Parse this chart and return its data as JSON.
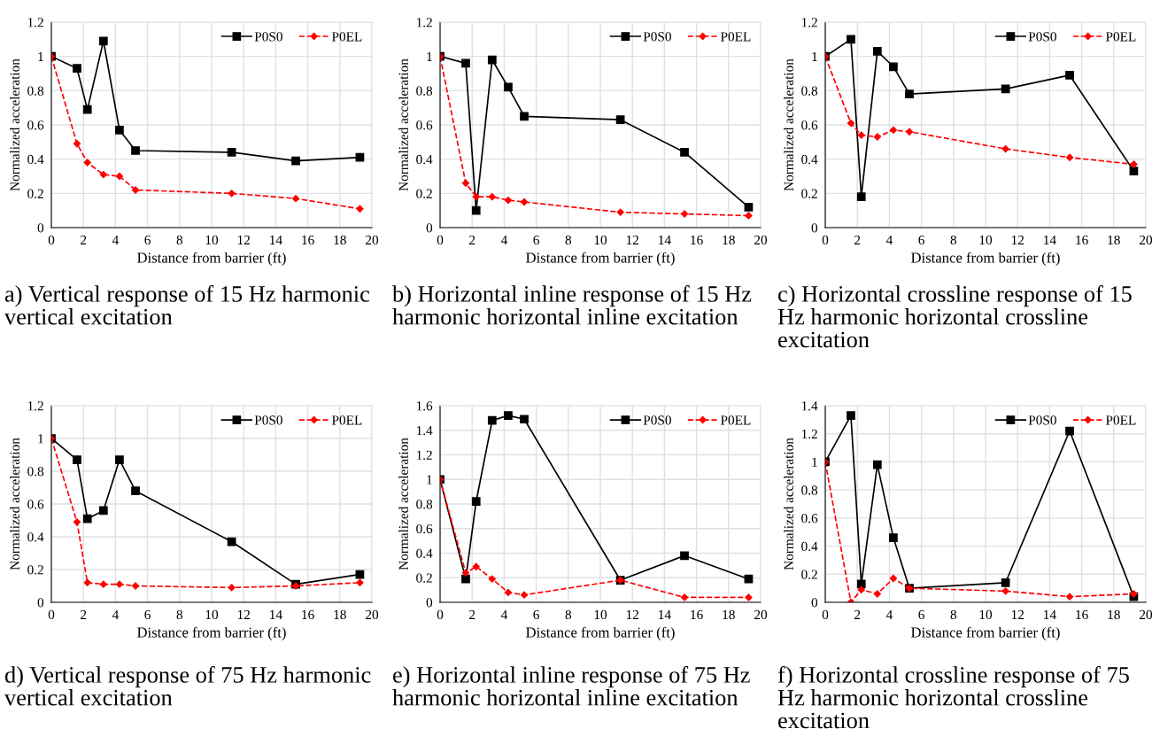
{
  "chart_data": [
    {
      "type": "line",
      "title": "a) Vertical response of 15 Hz harmonic vertical excitation",
      "xlabel": "Distance from barrier (ft)",
      "ylabel": "Normalized acceleration",
      "x": [
        0,
        1.6,
        2.25,
        3.25,
        4.25,
        5.25,
        11.25,
        15.25,
        19.25
      ],
      "xlim": [
        0,
        20
      ],
      "xticks": [
        0,
        2,
        4,
        6,
        8,
        10,
        12,
        14,
        16,
        18,
        20
      ],
      "ylim": [
        0,
        1.2
      ],
      "yticks": [
        0,
        0.2,
        0.4,
        0.6,
        0.8,
        1,
        1.2
      ],
      "grid": true,
      "legend": "top right",
      "series": [
        {
          "name": "P0S0",
          "color": "#000000",
          "marker": "square",
          "line_style": "solid",
          "values": [
            1,
            0.93,
            0.69,
            1.09,
            0.57,
            0.45,
            0.44,
            0.39,
            0.41
          ]
        },
        {
          "name": "P0EL",
          "color": "#ff0000",
          "marker": "diamond",
          "line_style": "dashed",
          "values": [
            1,
            0.49,
            0.38,
            0.31,
            0.3,
            0.22,
            0.2,
            0.17,
            0.11
          ]
        }
      ]
    },
    {
      "type": "line",
      "title": "b) Horizontal inline response of 15 Hz harmonic horizontal inline excitation",
      "xlabel": "Distance from barrier (ft)",
      "ylabel": "Normalized acceleration",
      "x": [
        0,
        1.6,
        2.25,
        3.25,
        4.25,
        5.25,
        11.25,
        15.25,
        19.25
      ],
      "xlim": [
        0,
        20
      ],
      "xticks": [
        0,
        2,
        4,
        6,
        8,
        10,
        12,
        14,
        16,
        18,
        20
      ],
      "ylim": [
        0,
        1.2
      ],
      "yticks": [
        0,
        0.2,
        0.4,
        0.6,
        0.8,
        1,
        1.2
      ],
      "grid": true,
      "legend": "top right",
      "series": [
        {
          "name": "P0S0",
          "color": "#000000",
          "marker": "square",
          "line_style": "solid",
          "values": [
            1,
            0.96,
            0.1,
            0.98,
            0.82,
            0.65,
            0.63,
            0.44,
            0.12
          ]
        },
        {
          "name": "P0EL",
          "color": "#ff0000",
          "marker": "diamond",
          "line_style": "dashed",
          "values": [
            1,
            0.26,
            0.18,
            0.18,
            0.16,
            0.15,
            0.09,
            0.08,
            0.07
          ]
        }
      ]
    },
    {
      "type": "line",
      "title": "c) Horizontal crossline response of 15 Hz harmonic horizontal crossline excitation",
      "xlabel": "Distance from barrier (ft)",
      "ylabel": "Normalized acceleration",
      "x": [
        0,
        1.6,
        2.25,
        3.25,
        4.25,
        5.25,
        11.25,
        15.25,
        19.25
      ],
      "xlim": [
        0,
        20
      ],
      "xticks": [
        0,
        2,
        4,
        6,
        8,
        10,
        12,
        14,
        16,
        18,
        20
      ],
      "ylim": [
        0,
        1.2
      ],
      "yticks": [
        0,
        0.2,
        0.4,
        0.6,
        0.8,
        1,
        1.2
      ],
      "grid": true,
      "legend": "top right",
      "series": [
        {
          "name": "P0S0",
          "color": "#000000",
          "marker": "square",
          "line_style": "solid",
          "values": [
            1,
            1.1,
            0.18,
            1.03,
            0.94,
            0.78,
            0.81,
            0.89,
            0.33
          ]
        },
        {
          "name": "P0EL",
          "color": "#ff0000",
          "marker": "diamond",
          "line_style": "dashed",
          "values": [
            1,
            0.61,
            0.54,
            0.53,
            0.57,
            0.56,
            0.46,
            0.41,
            0.37
          ]
        }
      ]
    },
    {
      "type": "line",
      "title": "d) Vertical response of 75 Hz harmonic vertical excitation",
      "xlabel": "Distance from barrier (ft)",
      "ylabel": "Normalized acceleration",
      "x": [
        0,
        1.6,
        2.25,
        3.25,
        4.25,
        5.25,
        11.25,
        15.25,
        19.25
      ],
      "xlim": [
        0,
        20
      ],
      "xticks": [
        0,
        2,
        4,
        6,
        8,
        10,
        12,
        14,
        16,
        18,
        20
      ],
      "ylim": [
        0,
        1.2
      ],
      "yticks": [
        0,
        0.2,
        0.4,
        0.6,
        0.8,
        1,
        1.2
      ],
      "grid": true,
      "legend": "top right",
      "series": [
        {
          "name": "P0S0",
          "color": "#000000",
          "marker": "square",
          "line_style": "solid",
          "values": [
            1,
            0.87,
            0.51,
            0.56,
            0.87,
            0.68,
            0.37,
            0.11,
            0.17
          ]
        },
        {
          "name": "P0EL",
          "color": "#ff0000",
          "marker": "diamond",
          "line_style": "dashed",
          "values": [
            1,
            0.49,
            0.12,
            0.11,
            0.11,
            0.1,
            0.09,
            0.1,
            0.12
          ]
        }
      ]
    },
    {
      "type": "line",
      "title": "e) Horizontal inline response of 75 Hz harmonic horizontal inline excitation",
      "xlabel": "Distance from barrier (ft)",
      "ylabel": "Normalized acceleration",
      "x": [
        0,
        1.6,
        2.25,
        3.25,
        4.25,
        5.25,
        11.25,
        15.25,
        19.25
      ],
      "xlim": [
        0,
        20
      ],
      "xticks": [
        0,
        2,
        4,
        6,
        8,
        10,
        12,
        14,
        16,
        18,
        20
      ],
      "ylim": [
        0,
        1.6
      ],
      "yticks": [
        0,
        0.2,
        0.4,
        0.6,
        0.8,
        1,
        1.2,
        1.4,
        1.6
      ],
      "grid": true,
      "legend": "top right",
      "series": [
        {
          "name": "P0S0",
          "color": "#000000",
          "marker": "square",
          "line_style": "solid",
          "values": [
            1,
            0.19,
            0.82,
            1.48,
            1.52,
            1.49,
            0.18,
            0.38,
            0.19
          ]
        },
        {
          "name": "P0EL",
          "color": "#ff0000",
          "marker": "diamond",
          "line_style": "dashed",
          "values": [
            1,
            0.24,
            0.29,
            0.19,
            0.08,
            0.06,
            0.18,
            0.04,
            0.04
          ]
        }
      ]
    },
    {
      "type": "line",
      "title": "f) Horizontal crossline response of 75 Hz harmonic horizontal crossline excitation",
      "xlabel": "Distance from barrier (ft)",
      "ylabel": "Normalized acceleration",
      "x": [
        0,
        1.6,
        2.25,
        3.25,
        4.25,
        5.25,
        11.25,
        15.25,
        19.25
      ],
      "xlim": [
        0,
        20
      ],
      "xticks": [
        0,
        2,
        4,
        6,
        8,
        10,
        12,
        14,
        16,
        18,
        20
      ],
      "ylim": [
        0,
        1.4
      ],
      "yticks": [
        0,
        0.2,
        0.4,
        0.6,
        0.8,
        1,
        1.2,
        1.4
      ],
      "grid": true,
      "legend": "top right",
      "series": [
        {
          "name": "P0S0",
          "color": "#000000",
          "marker": "square",
          "line_style": "solid",
          "values": [
            1,
            1.33,
            0.13,
            0.98,
            0.46,
            0.1,
            0.14,
            1.22,
            0.04
          ]
        },
        {
          "name": "P0EL",
          "color": "#ff0000",
          "marker": "diamond",
          "line_style": "dashed",
          "values": [
            1,
            0.0,
            0.09,
            0.06,
            0.17,
            0.1,
            0.08,
            0.04,
            0.06
          ]
        }
      ]
    }
  ]
}
